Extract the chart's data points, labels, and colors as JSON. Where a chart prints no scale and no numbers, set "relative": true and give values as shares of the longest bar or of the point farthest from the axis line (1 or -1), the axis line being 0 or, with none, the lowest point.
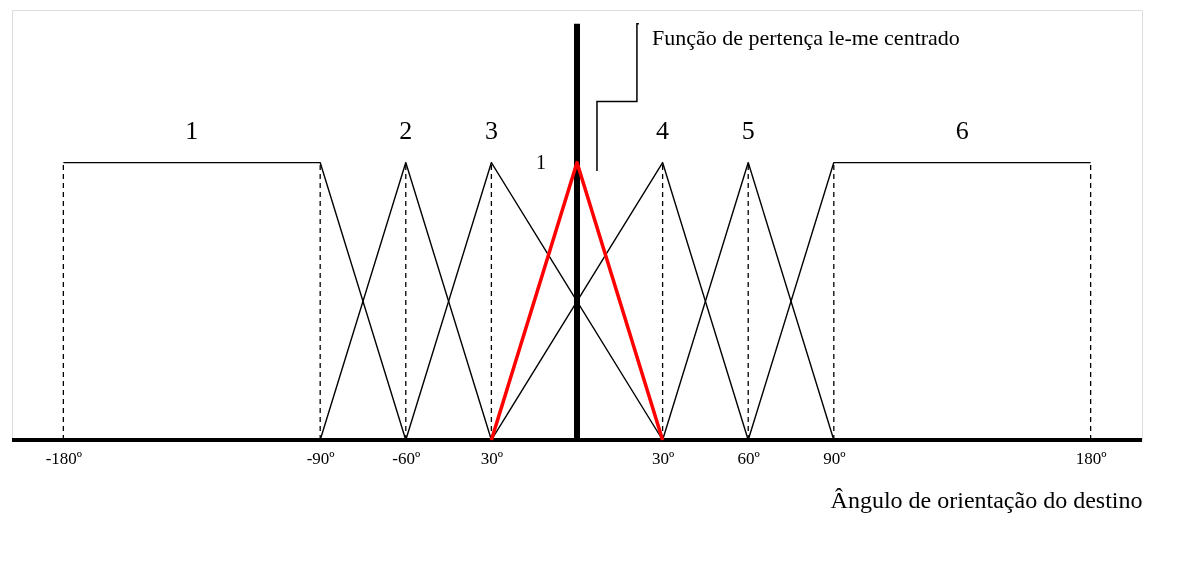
{
  "chart_data": {
    "type": "line",
    "relative": true,
    "xlabel": "Ângulo de orientação do destino",
    "xlim": [
      -198,
      198
    ],
    "xticks": [
      {
        "value": -180,
        "label": "-180º"
      },
      {
        "value": -90,
        "label": "-90º"
      },
      {
        "value": -60,
        "label": "-60º"
      },
      {
        "value": -30,
        "label": "30º"
      },
      {
        "value": 30,
        "label": "30º"
      },
      {
        "value": 60,
        "label": "60º"
      },
      {
        "value": 90,
        "label": "90º"
      },
      {
        "value": 180,
        "label": "180º"
      }
    ],
    "series": [
      {
        "name": "1",
        "color": "#000000",
        "x": [
          -180,
          -90,
          -60
        ],
        "values": [
          1,
          1,
          0
        ]
      },
      {
        "name": "2",
        "color": "#000000",
        "x": [
          -90,
          -60,
          -30
        ],
        "values": [
          0,
          1,
          0
        ]
      },
      {
        "name": "3",
        "color": "#000000",
        "x": [
          -60,
          -30,
          30
        ],
        "values": [
          0,
          1,
          0
        ]
      },
      {
        "name": "4",
        "color": "#000000",
        "x": [
          -30,
          30,
          60
        ],
        "values": [
          0,
          1,
          0
        ]
      },
      {
        "name": "5",
        "color": "#000000",
        "x": [
          30,
          60,
          90
        ],
        "values": [
          0,
          1,
          0
        ]
      },
      {
        "name": "6",
        "color": "#000000",
        "x": [
          60,
          90,
          180
        ],
        "values": [
          0,
          1,
          1
        ]
      },
      {
        "color": "#ff0000",
        "x": [
          -30,
          0,
          30
        ],
        "values": [
          0,
          1,
          0
        ]
      }
    ],
    "ref_lines": [
      {
        "axis": "x",
        "value": -180,
        "line_style": "dashed"
      },
      {
        "axis": "x",
        "value": -90,
        "line_style": "dashed"
      },
      {
        "axis": "x",
        "value": -60,
        "line_style": "dashed"
      },
      {
        "axis": "x",
        "value": -30,
        "line_style": "dashed"
      },
      {
        "axis": "x",
        "value": 30,
        "line_style": "dashed"
      },
      {
        "axis": "x",
        "value": 60,
        "line_style": "dashed"
      },
      {
        "axis": "x",
        "value": 90,
        "line_style": "dashed"
      },
      {
        "axis": "x",
        "value": 180,
        "line_style": "dashed"
      }
    ],
    "annotations": [
      {
        "text": "1",
        "x": 0,
        "y": 1
      },
      "Função de pertença le-me centrado"
    ],
    "grid": false,
    "marker": "none",
    "line_style": "solid"
  }
}
